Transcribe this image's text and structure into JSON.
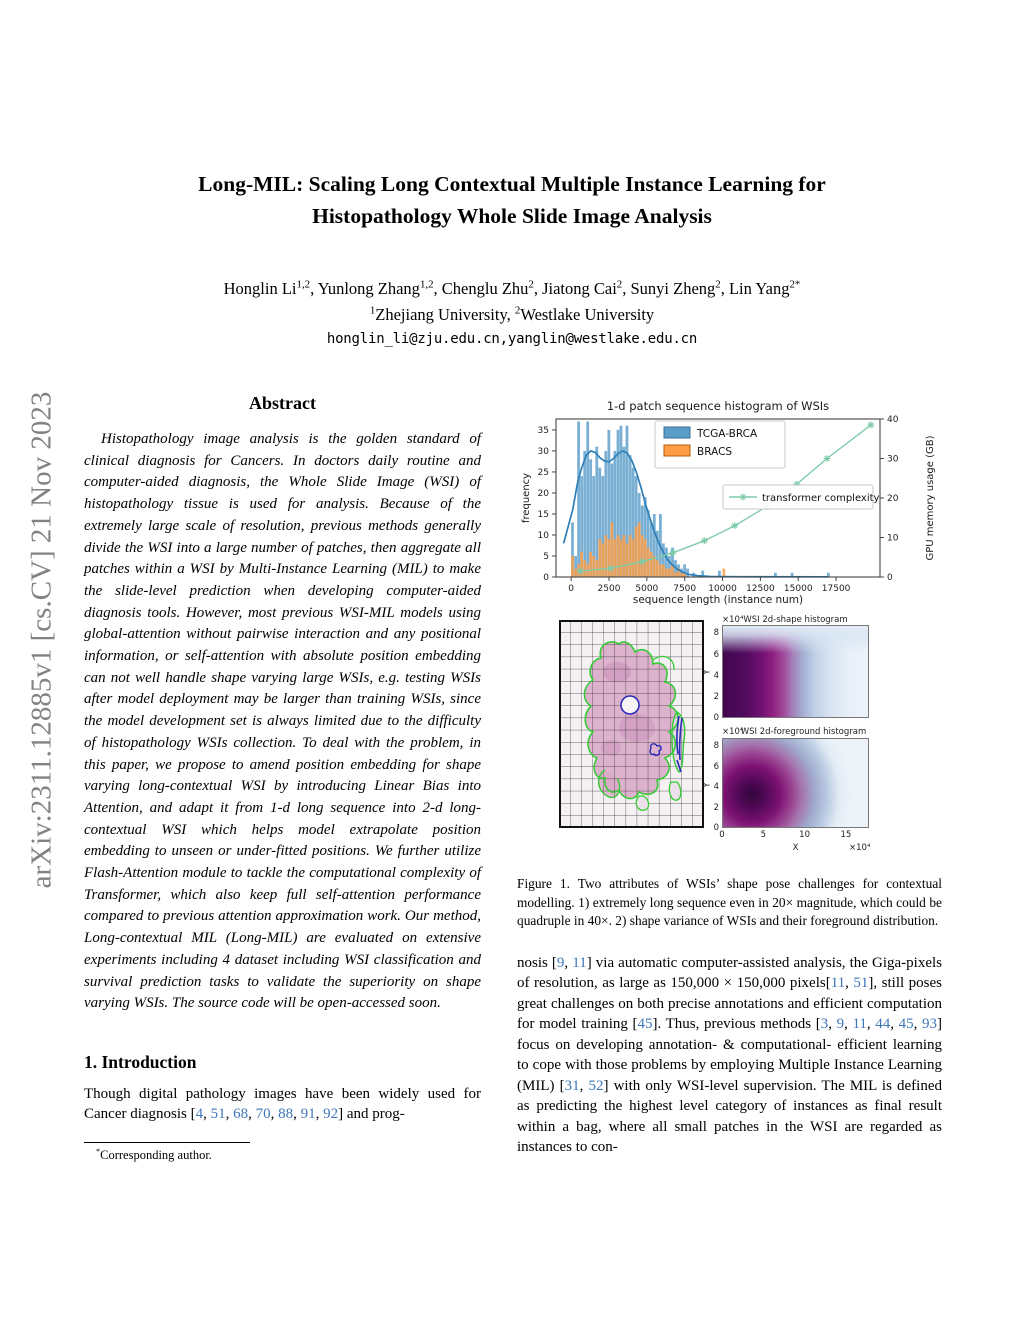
{
  "watermark": "arXiv:2311.12885v1  [cs.CV]  21 Nov 2023",
  "header": {
    "title_lines": [
      "Long-MIL: Scaling Long Contextual Multiple Instance Learning for",
      "Histopathology Whole Slide Image Analysis"
    ],
    "authors_rich": "Honglin Li[[s:1,2]], Yunlong Zhang[[s:1,2]], Chenglu Zhu[[s:2]], Jiatong Cai[[s:2]], Sunyi Zheng[[s:2]], Lin Yang[[s:2*]]",
    "affiliations_rich": "[[s:1]]Zhejiang University, [[s:2]]Westlake University",
    "email": "honglin_li@zju.edu.cn,yanglin@westlake.edu.cn"
  },
  "abstract": {
    "heading": "Abstract",
    "body": "Histopathology image analysis is the golden standard of clinical diagnosis for Cancers. In doctors daily routine and computer-aided diagnosis, the Whole Slide Image (WSI) of histopathology tissue is used for analysis. Because of the extremely large scale of resolution, previous methods generally divide the WSI into a large number of patches, then aggregate all patches within a WSI by Multi-Instance Learning (MIL) to make the slide-level prediction when developing computer-aided diagnosis tools. However, most previous WSI-MIL models using global-attention without pairwise interaction and any positional information, or self-attention with absolute position embedding can not well handle shape varying large WSIs, e.g. testing WSIs after model deployment may be larger than training WSIs, since the model development set is always limited due to the difficulty of histopathology WSIs collection. To deal with the problem, in this paper, we propose to amend position embedding for shape varying long-contextual WSI by introducing Linear Bias into Attention, and adapt it from 1-d long sequence into 2-d long-contextual WSI which helps model extrapolate position embedding to unseen or under-fitted positions. We further utilize Flash-Attention module to tackle the computational complexity of Transformer, which also keep full self-attention performance compared to previous attention approximation work. Our method, Long-contextual MIL (Long-MIL) are evaluated on extensive experiments including 4 dataset including WSI classification and survival prediction tasks to validate the superiority on shape varying WSIs. The source code will be open-accessed soon."
  },
  "introduction": {
    "heading": "1. Introduction",
    "p1_rich": "Though digital pathology images have been widely used for Cancer diagnosis [[[c:4]], [[c:51]], [[c:68]], [[c:70]], [[c:88]], [[c:91]], [[c:92]]] and prog-"
  },
  "footnote_rich": "[[s:*]]Corresponding author.",
  "figure1": {
    "caption_rich": "Figure 1. Two attributes of WSIs’ shape pose challenges for contextual modelling. 1) extremely long sequence even in 20× magnitude, which could be quadruple in 40×. 2) shape variance of WSIs and their foreground distribution.",
    "shape_hist": {
      "scale_label": "×10⁴",
      "title": "WSI 2d-shape histogram",
      "y_label": "Y",
      "y_ticks": [
        8,
        6,
        4,
        2,
        0
      ]
    },
    "fg_hist": {
      "scale_label": "×10⁴",
      "title": "WSI 2d-foreground histogram",
      "y_label": "Y",
      "y_ticks": [
        8,
        6,
        4,
        2,
        0
      ],
      "x_label": "X",
      "x_scale_label": "×10⁴",
      "x_ticks": [
        0,
        5,
        10,
        15
      ]
    }
  },
  "body_right": {
    "p1_rich": "nosis [[[c:9]], [[c:11]]] via automatic computer-assisted analysis, the Giga-pixels of resolution, as large as 150,000 × 150,000 pixels[[[c:11]], [[c:51]]], still poses great challenges on both precise annotations and efficient computation for model training [[[c:45]]]. Thus, previous methods [[[c:3]], [[c:9]], [[c:11]], [[c:44]], [[c:45]], [[c:93]]] focus on developing annotation- & computational- efficient learning to cope with those problems by employing Multiple Instance Learning (MIL) [[[c:31]], [[c:52]]] with only WSI-level supervision. The MIL is defined as predicting the highest level category of instances as final result within a bag, where all small patches in the WSI are regarded as instances to con-"
  },
  "colors": {
    "citation": "#3d76b8",
    "hist_blue": "#5b9dc9",
    "hist_orange": "#ff9d45",
    "kde_blue": "#2d7fb8",
    "complexity_teal": "#7ecbaa",
    "watermark_gray": "#828282",
    "tissue_pink": "#d9a8c6",
    "contour_green": "#35cb35",
    "contour_blue": "#2b2bbb"
  },
  "chart_data": {
    "type": "bar",
    "subtype": "histogram-with-lines",
    "title": "1-d patch sequence histogram of WSIs",
    "xlabel": "sequence length (instance num)",
    "ylabel": "frequency",
    "ylabel_right": "GPU memory usage (GB)",
    "x_ticks": [
      0,
      2500,
      5000,
      7500,
      10000,
      12500,
      15000,
      17500
    ],
    "y_ticks_left": [
      0,
      5,
      10,
      15,
      20,
      25,
      30,
      35
    ],
    "y_ticks_right": [
      0,
      10,
      20,
      30,
      40
    ],
    "xlim": [
      -1000,
      20400
    ],
    "ylim_left": [
      0,
      37.6
    ],
    "ylim_right": [
      0,
      40
    ],
    "bin_width": 200,
    "legend_position": "upper-center and middle-right",
    "grid": false,
    "series": [
      {
        "name": "TCGA-BRCA",
        "type": "hist",
        "color": "#5b9dc9",
        "bins": [
          [
            0,
            13
          ],
          [
            200,
            5
          ],
          [
            400,
            37
          ],
          [
            600,
            24
          ],
          [
            800,
            30
          ],
          [
            1000,
            37
          ],
          [
            1200,
            28
          ],
          [
            1400,
            24
          ],
          [
            1600,
            31
          ],
          [
            1800,
            26
          ],
          [
            2000,
            24
          ],
          [
            2200,
            30
          ],
          [
            2400,
            35
          ],
          [
            2600,
            27
          ],
          [
            2800,
            30
          ],
          [
            3000,
            35
          ],
          [
            3200,
            36
          ],
          [
            3400,
            31
          ],
          [
            3600,
            36
          ],
          [
            3800,
            29
          ],
          [
            4000,
            26
          ],
          [
            4200,
            24
          ],
          [
            4400,
            20
          ],
          [
            4600,
            17
          ],
          [
            4800,
            19
          ],
          [
            5000,
            16
          ],
          [
            5200,
            13
          ],
          [
            5400,
            15
          ],
          [
            5600,
            11
          ],
          [
            5800,
            15
          ],
          [
            6000,
            8
          ],
          [
            6200,
            7
          ],
          [
            6400,
            5
          ],
          [
            6600,
            7
          ],
          [
            6800,
            4
          ],
          [
            7000,
            3
          ],
          [
            7200,
            2
          ],
          [
            7400,
            3
          ],
          [
            7600,
            2
          ],
          [
            8000,
            1
          ],
          [
            8600,
            1.5
          ],
          [
            9700,
            1.5
          ],
          [
            13400,
            1
          ],
          [
            14500,
            1
          ],
          [
            16900,
            1
          ]
        ]
      },
      {
        "name": "BRACS",
        "type": "hist",
        "color": "#ff9d45",
        "bins": [
          [
            0,
            5
          ],
          [
            200,
            2
          ],
          [
            400,
            3
          ],
          [
            600,
            6
          ],
          [
            800,
            4
          ],
          [
            1000,
            3
          ],
          [
            1200,
            6
          ],
          [
            1400,
            5
          ],
          [
            1600,
            4
          ],
          [
            1800,
            9
          ],
          [
            2000,
            8
          ],
          [
            2200,
            10
          ],
          [
            2400,
            9
          ],
          [
            2600,
            13
          ],
          [
            2800,
            9
          ],
          [
            3000,
            10
          ],
          [
            3200,
            9
          ],
          [
            3400,
            10
          ],
          [
            3600,
            8
          ],
          [
            3800,
            10
          ],
          [
            4000,
            9
          ],
          [
            4200,
            12
          ],
          [
            4400,
            13
          ],
          [
            4600,
            10
          ],
          [
            4800,
            9
          ],
          [
            5000,
            7
          ],
          [
            5200,
            6
          ],
          [
            5400,
            5
          ],
          [
            5600,
            4
          ],
          [
            5800,
            3
          ],
          [
            6000,
            3
          ],
          [
            6200,
            2
          ],
          [
            6400,
            2
          ],
          [
            6600,
            3
          ],
          [
            6800,
            1
          ],
          [
            7000,
            2
          ],
          [
            7200,
            1
          ],
          [
            7400,
            1
          ],
          [
            10000,
            2
          ]
        ]
      },
      {
        "name": "TCGA-BRCA density",
        "type": "line",
        "axis": "left",
        "color": "#2d7fb8",
        "points": [
          [
            -500,
            8
          ],
          [
            100,
            16
          ],
          [
            400,
            22
          ],
          [
            700,
            26
          ],
          [
            1000,
            29
          ],
          [
            1300,
            30
          ],
          [
            1600,
            29.6
          ],
          [
            1900,
            28.4
          ],
          [
            2200,
            27.6
          ],
          [
            2500,
            27.4
          ],
          [
            2800,
            28.2
          ],
          [
            3100,
            29.4
          ],
          [
            3400,
            30
          ],
          [
            3700,
            29.5
          ],
          [
            4000,
            27.8
          ],
          [
            4300,
            25
          ],
          [
            4600,
            21.5
          ],
          [
            4900,
            17.5
          ],
          [
            5200,
            14
          ],
          [
            5500,
            10.8
          ],
          [
            5800,
            8
          ],
          [
            6100,
            5.8
          ],
          [
            6400,
            4
          ],
          [
            6700,
            2.8
          ],
          [
            7000,
            1.9
          ],
          [
            7400,
            1.1
          ],
          [
            7800,
            0.6
          ],
          [
            8400,
            0.3
          ],
          [
            9200,
            0.12
          ],
          [
            11000,
            0.06
          ],
          [
            17000,
            0.04
          ]
        ]
      },
      {
        "name": "transformer complexity",
        "type": "line",
        "axis": "right",
        "color": "#7ecbaa",
        "marker": "star",
        "points": [
          [
            600,
            1.5
          ],
          [
            2600,
            2.2
          ],
          [
            4700,
            3.9
          ],
          [
            6700,
            6.1
          ],
          [
            8800,
            9.2
          ],
          [
            10800,
            13
          ],
          [
            12900,
            17.8
          ],
          [
            14900,
            23.5
          ],
          [
            16900,
            30
          ],
          [
            19800,
            38.5
          ]
        ]
      }
    ]
  }
}
